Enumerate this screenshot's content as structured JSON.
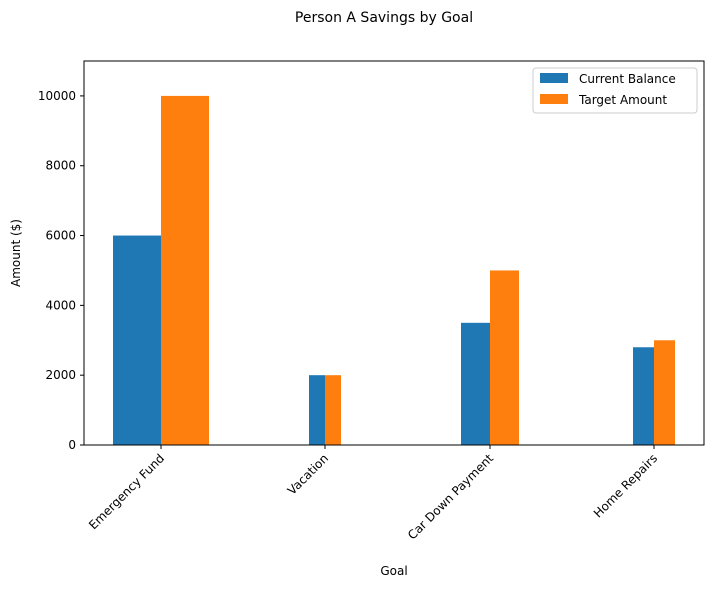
{
  "chart_data": {
    "type": "bar",
    "title": "Person A Savings by Goal",
    "xlabel": "Goal",
    "ylabel": "Amount ($)",
    "ylim": [
      0,
      11000
    ],
    "yticks": [
      0,
      2000,
      4000,
      6000,
      8000,
      10000
    ],
    "categories": [
      "Emergency Fund",
      "Vacation",
      "Car Down Payment",
      "Home Repairs"
    ],
    "series": [
      {
        "name": "Current Balance",
        "color": "#1f77b4",
        "values": [
          6000,
          2000,
          3500,
          2800
        ]
      },
      {
        "name": "Target Amount",
        "color": "#ff7f0e",
        "values": [
          10000,
          2000,
          5000,
          3000
        ]
      }
    ],
    "grid": false,
    "legend_position": "top-right",
    "tick_label_rotation": 45
  }
}
